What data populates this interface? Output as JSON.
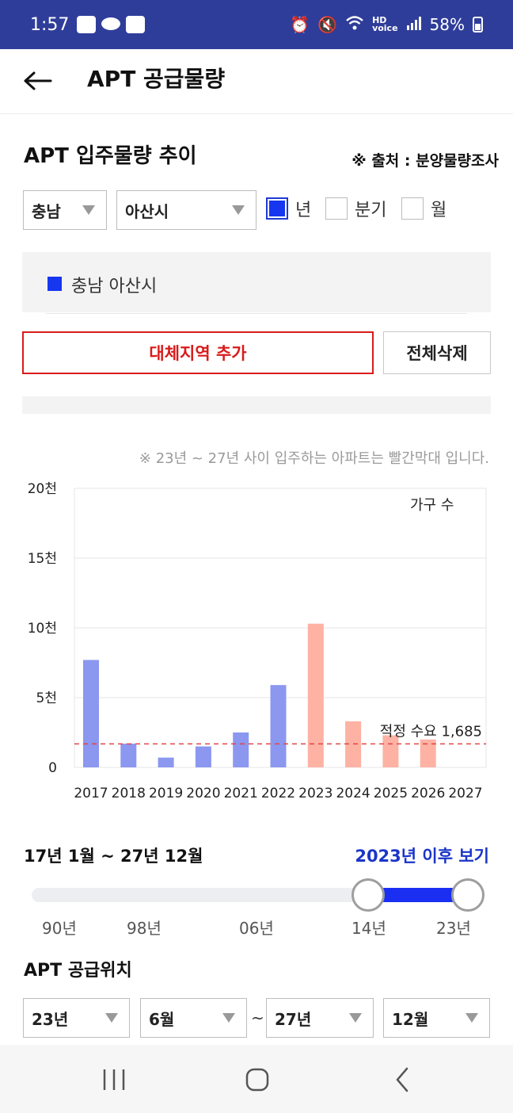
{
  "status": {
    "time": "1:57",
    "left_icons": [
      "blog-icon",
      "chat-icon",
      "signal-app-icon"
    ],
    "right_icons": [
      "alarm-icon",
      "mute-icon",
      "wifi-icon",
      "hd-voice-icon",
      "signal-bars-icon"
    ],
    "battery": "58%"
  },
  "header": {
    "title": "APT 공급물량"
  },
  "section": {
    "title": "APT 입주물량 추이",
    "source": "※ 출처 : 분양물량조사"
  },
  "filters": {
    "region": "충남",
    "city": "아산시",
    "periods": [
      {
        "label": "년",
        "checked": true
      },
      {
        "label": "분기",
        "checked": false
      },
      {
        "label": "월",
        "checked": false
      }
    ]
  },
  "legend": {
    "label": "충남 아산시",
    "color": "#1736f0"
  },
  "buttons": {
    "add_region": "대체지역 추가",
    "clear_all": "전체삭제"
  },
  "chart_note": "※ 23년 ~ 27년 사이 입주하는 아파트는 빨간막대 입니다.",
  "chart_data": {
    "type": "bar",
    "unit_label": "가구 수",
    "categories": [
      "2017",
      "2018",
      "2019",
      "2020",
      "2021",
      "2022",
      "2023",
      "2024",
      "2025",
      "2026",
      "2027"
    ],
    "values": [
      7700,
      1700,
      700,
      1500,
      2500,
      5900,
      10300,
      3300,
      2300,
      2000,
      0
    ],
    "highlight_from": "2023",
    "colors": {
      "past": "#8c97f0",
      "future": "#fdb2a4",
      "demand_line": "#e04646"
    },
    "ylim": [
      0,
      20000
    ],
    "yticks": [
      {
        "value": 0,
        "label": "0"
      },
      {
        "value": 5000,
        "label": "5천"
      },
      {
        "value": 10000,
        "label": "10천"
      },
      {
        "value": 15000,
        "label": "15천"
      },
      {
        "value": 20000,
        "label": "20천"
      }
    ],
    "reference_line": {
      "value": 1685,
      "label": "적정 수요 1,685"
    },
    "grid": true
  },
  "range": {
    "label": "17년 1월 ~ 27년 12월",
    "link": "2023년 이후 보기",
    "ticks": [
      "90년",
      "98년",
      "06년",
      "14년",
      "23년"
    ],
    "selected_start": 0.74,
    "selected_end": 1.0
  },
  "supply": {
    "title": "APT 공급위치",
    "from_year": "23년",
    "from_month": "6월",
    "separator": "~",
    "to_year": "27년",
    "to_month": "12월"
  }
}
